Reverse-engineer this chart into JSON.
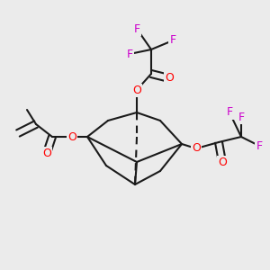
{
  "bg_color": "#ebebeb",
  "bond_color": "#1a1a1a",
  "O_color": "#ff0000",
  "F_color": "#cc00cc",
  "line_width": 1.5,
  "font_size_atom": 9.0,
  "fig_width": 3.0,
  "fig_height": 3.0,
  "xlim": [
    0,
    300
  ],
  "ylim": [
    0,
    300
  ]
}
